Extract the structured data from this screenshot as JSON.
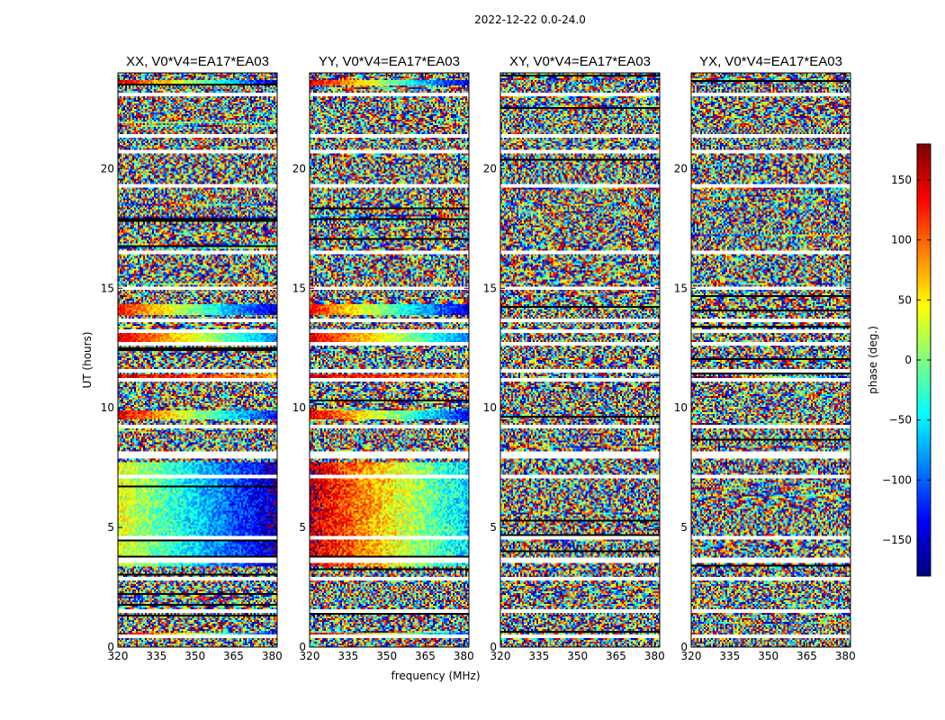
{
  "chart_data": {
    "type": "heatmap",
    "suptitle": "2022-12-22 0.0-24.0",
    "xlabel": "frequency (MHz)",
    "ylabel": "UT (hours)",
    "xlim": [
      320,
      382
    ],
    "ylim": [
      0,
      24
    ],
    "xticks": [
      320,
      335,
      350,
      365,
      380
    ],
    "yticks": [
      0,
      5,
      10,
      15,
      20
    ],
    "panels": [
      {
        "title": "XX, V0*V4=EA17*EA03",
        "pol": "XX"
      },
      {
        "title": "YY, V0*V4=EA17*EA03",
        "pol": "YY"
      },
      {
        "title": "XY, V0*V4=EA17*EA03",
        "pol": "XY"
      },
      {
        "title": "YX, V0*V4=EA17*EA03",
        "pol": "YX"
      }
    ],
    "colorbar": {
      "label": "phase (deg.)",
      "range": [
        -180,
        180
      ],
      "ticks": [
        150,
        100,
        50,
        0,
        -50,
        -100,
        -150
      ],
      "tick_labels": [
        "150",
        "100",
        "50",
        "0",
        "−50",
        "−100",
        "−150"
      ],
      "colormap": "jet"
    },
    "gap_hours": [
      0.35,
      1.4,
      2.75,
      3.5,
      3.62,
      4.5,
      7.05,
      7.85,
      8.05,
      9.15,
      11.1,
      11.5,
      12.6,
      13.15,
      13.6,
      14.95,
      16.45,
      19.2,
      20.6,
      21.3,
      23.0
    ],
    "coherent_bands": [
      {
        "pols": [
          "XX"
        ],
        "y0": 3.4,
        "y1": 7.7,
        "phase_start": 40,
        "phase_end": -160,
        "noise": 40
      },
      {
        "pols": [
          "YY"
        ],
        "y0": 3.4,
        "y1": 7.7,
        "phase_start": 160,
        "phase_end": -60,
        "noise": 45
      },
      {
        "pols": [
          "XX",
          "YY"
        ],
        "y0": 12.6,
        "y1": 13.1,
        "phase_start": 150,
        "phase_end": -90,
        "noise": 25
      },
      {
        "pols": [
          "XX",
          "YY"
        ],
        "y0": 13.9,
        "y1": 14.3,
        "phase_start": 130,
        "phase_end": -150,
        "noise": 30
      },
      {
        "pols": [
          "XX",
          "YY"
        ],
        "y0": 9.5,
        "y1": 9.9,
        "phase_start": 150,
        "phase_end": -130,
        "noise": 30
      },
      {
        "pols": [
          "XX",
          "YY"
        ],
        "y0": 11.1,
        "y1": 11.4,
        "phase_start": 150,
        "phase_end": 80,
        "noise": 30
      },
      {
        "pols": [
          "XX",
          "YY"
        ],
        "y0": 23.5,
        "y1": 23.7,
        "phase_start": 150,
        "phase_end": -150,
        "noise": 30
      },
      {
        "pols": [
          "XX",
          "YY"
        ],
        "y0": 0.35,
        "y1": 0.6,
        "phase_start": 160,
        "phase_end": -120,
        "noise": 30
      }
    ]
  }
}
